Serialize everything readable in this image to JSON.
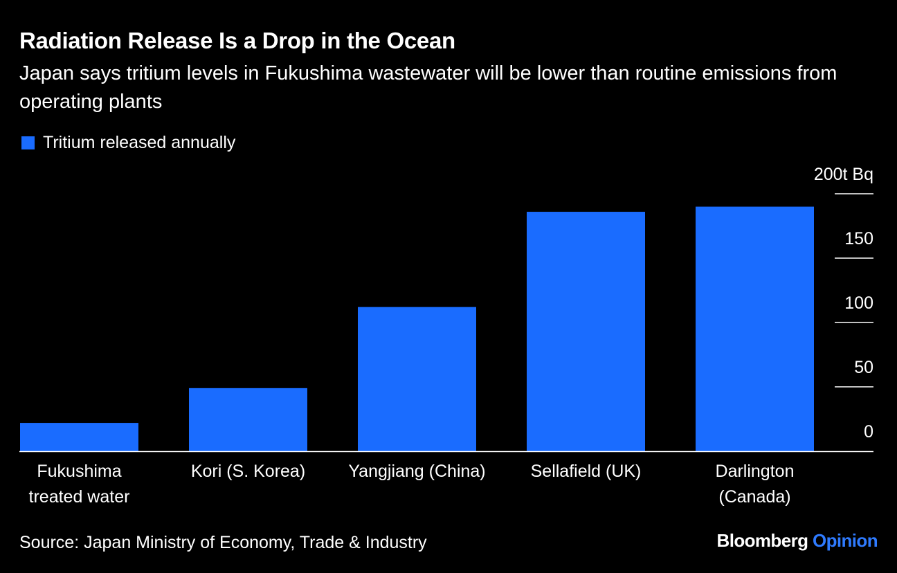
{
  "header": {
    "title": "Radiation Release Is a Drop in the Ocean",
    "subtitle": "Japan says tritium levels in Fukushima wastewater will be lower than routine emissions from operating plants"
  },
  "footer": {
    "source": "Source: Japan Ministry of Economy, Trade & Industry",
    "brand_name": "Bloomberg",
    "brand_suffix": "Opinion"
  },
  "colors": {
    "bar": "#1a6cff",
    "background": "#000000",
    "text": "#ffffff",
    "brand_accent": "#2f7bff"
  },
  "chart_data": {
    "type": "bar",
    "categories": [
      [
        "Fukushima",
        "treated water"
      ],
      [
        "Kori (S. Korea)"
      ],
      [
        "Yangjiang (China)"
      ],
      [
        "Sellafield (UK)"
      ],
      [
        "Darlington",
        "(Canada)"
      ]
    ],
    "series": [
      {
        "name": "Tritium released annually",
        "values": [
          22,
          49,
          112,
          186,
          190
        ]
      }
    ],
    "title": "Radiation Release Is a Drop in the Ocean",
    "subtitle": "Japan says tritium levels in Fukushima wastewater will be lower than routine emissions from operating plants",
    "xlabel": "",
    "ylabel": "",
    "ylim": [
      0,
      200
    ],
    "yticks": [
      0,
      50,
      100,
      150,
      200
    ],
    "ytick_labels": [
      "0",
      "50",
      "100",
      "150",
      "200t Bq"
    ],
    "y_axis_side": "right",
    "legend_position": "top-left",
    "grid": false
  }
}
